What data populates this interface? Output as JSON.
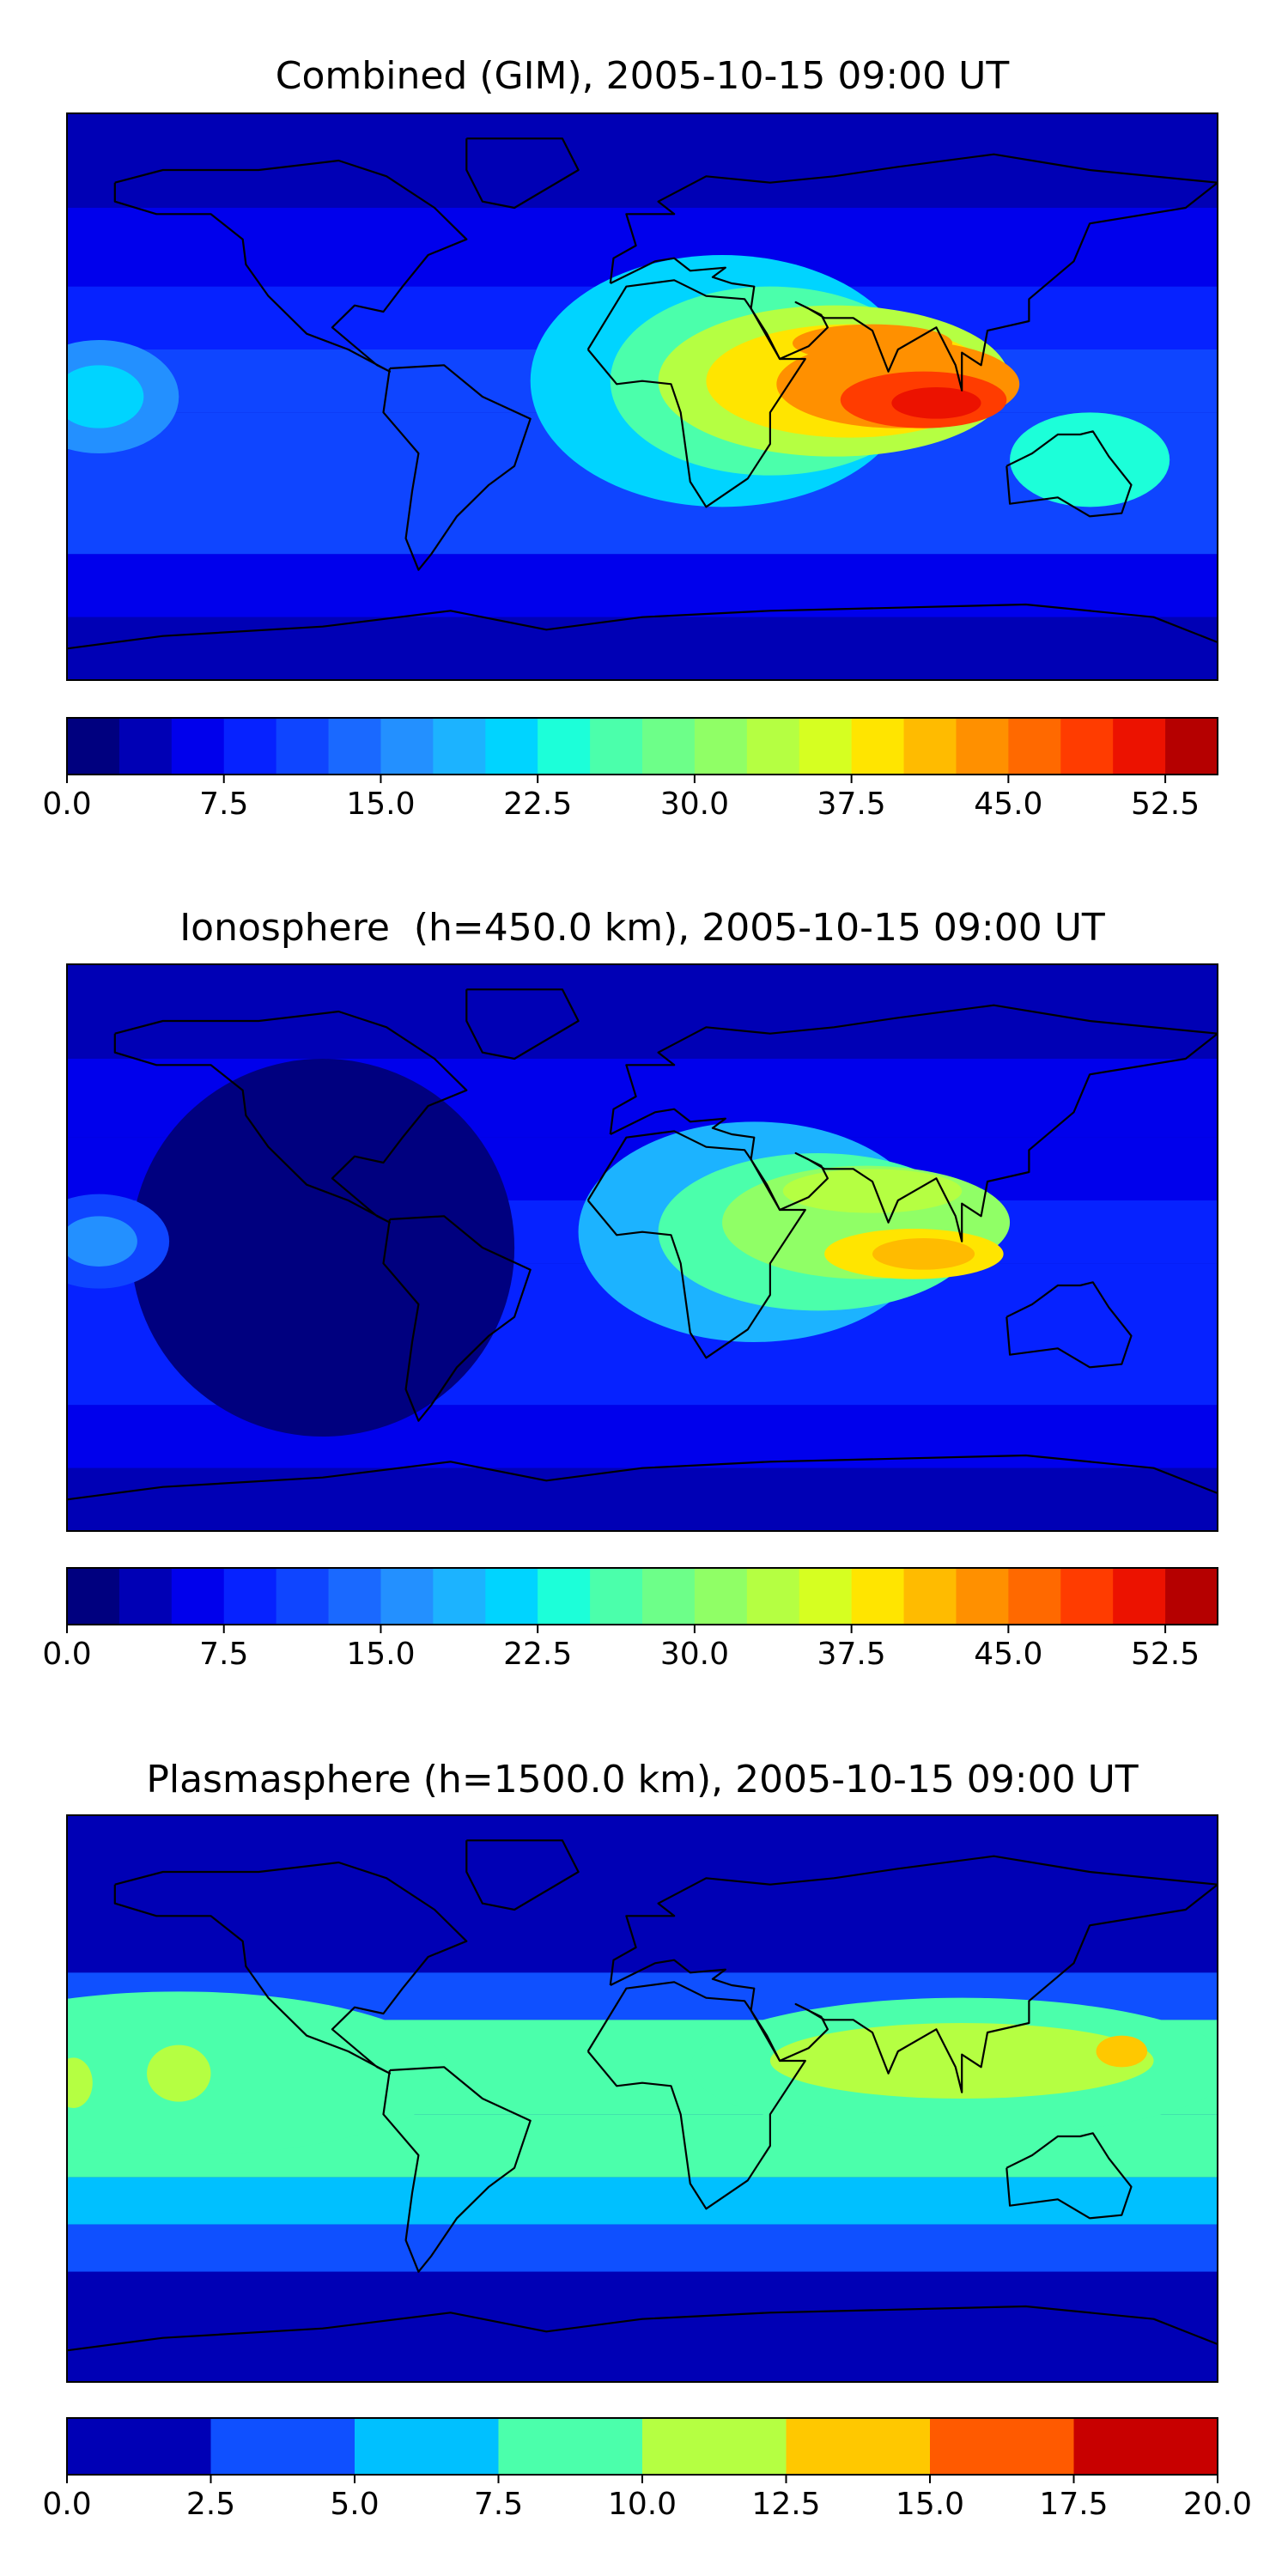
{
  "chart_data": [
    {
      "type": "heatmap",
      "subtype": "filled-contour-map",
      "title": "Combined (GIM), 2005-10-15 09:00 UT",
      "colormap": "jet",
      "colorbar": {
        "orientation": "horizontal",
        "levels": [
          0.0,
          2.5,
          5.0,
          7.5,
          10.0,
          12.5,
          15.0,
          17.5,
          20.0,
          22.5,
          25.0,
          27.5,
          30.0,
          32.5,
          35.0,
          37.5,
          40.0,
          42.5,
          45.0,
          47.5,
          50.0,
          52.5,
          55.0
        ],
        "tick_values": [
          0.0,
          7.5,
          15.0,
          22.5,
          30.0,
          37.5,
          45.0,
          52.5
        ],
        "tick_labels": [
          "0.0",
          "7.5",
          "15.0",
          "22.5",
          "30.0",
          "37.5",
          "45.0",
          "52.5"
        ],
        "colors": [
          "#00007f",
          "#0000b5",
          "#0000ec",
          "#0622ff",
          "#0f45ff",
          "#1a69ff",
          "#2390ff",
          "#1cb3ff",
          "#00d4ff",
          "#1cffd9",
          "#4bffab",
          "#6dff89",
          "#90ff66",
          "#b5ff42",
          "#d6ff21",
          "#ffe500",
          "#ffbb00",
          "#ff9000",
          "#ff6900",
          "#ff3c00",
          "#ec1200",
          "#b50000",
          "#7f0000"
        ]
      },
      "features": [
        {
          "lon": 90,
          "lat": -2,
          "value": 52.0
        },
        {
          "lon": 68,
          "lat": 12,
          "value": 44.0
        },
        {
          "lon": 30,
          "lat": 5,
          "value": 35.0
        },
        {
          "lon": -170,
          "lat": 0,
          "value": 22.0
        },
        {
          "lon": 140,
          "lat": -20,
          "value": 24.0
        }
      ]
    },
    {
      "type": "heatmap",
      "subtype": "filled-contour-map",
      "title": "Ionosphere  (h=450.0 km), 2005-10-15 09:00 UT",
      "colormap": "jet",
      "colorbar": {
        "orientation": "horizontal",
        "levels": [
          0.0,
          2.5,
          5.0,
          7.5,
          10.0,
          12.5,
          15.0,
          17.5,
          20.0,
          22.5,
          25.0,
          27.5,
          30.0,
          32.5,
          35.0,
          37.5,
          40.0,
          42.5,
          45.0,
          47.5,
          50.0,
          52.5,
          55.0
        ],
        "tick_values": [
          0.0,
          7.5,
          15.0,
          22.5,
          30.0,
          37.5,
          45.0,
          52.5
        ],
        "tick_labels": [
          "0.0",
          "7.5",
          "15.0",
          "22.5",
          "30.0",
          "37.5",
          "45.0",
          "52.5"
        ],
        "colors": [
          "#00007f",
          "#0000b5",
          "#0000ec",
          "#0622ff",
          "#0f45ff",
          "#1a69ff",
          "#2390ff",
          "#1cb3ff",
          "#00d4ff",
          "#1cffd9",
          "#4bffab",
          "#6dff89",
          "#90ff66",
          "#b5ff42",
          "#d6ff21",
          "#ffe500",
          "#ffbb00",
          "#ff9000",
          "#ff6900",
          "#ff3c00",
          "#ec1200",
          "#b50000",
          "#7f0000"
        ]
      },
      "features": [
        {
          "lon": 85,
          "lat": -2,
          "value": 42.0
        },
        {
          "lon": 70,
          "lat": 15,
          "value": 35.0
        },
        {
          "lon": -170,
          "lat": 0,
          "value": 17.0
        }
      ]
    },
    {
      "type": "heatmap",
      "subtype": "filled-contour-map",
      "title": "Plasmasphere (h=1500.0 km), 2005-10-15 09:00 UT",
      "colormap": "jet",
      "colorbar": {
        "orientation": "horizontal",
        "levels": [
          0.0,
          2.5,
          5.0,
          7.5,
          10.0,
          12.5,
          15.0,
          17.5,
          20.0
        ],
        "tick_values": [
          0.0,
          2.5,
          5.0,
          7.5,
          10.0,
          12.5,
          15.0,
          17.5,
          20.0
        ],
        "tick_labels": [
          "0.0",
          "2.5",
          "5.0",
          "7.5",
          "10.0",
          "12.5",
          "15.0",
          "17.5",
          "20.0"
        ],
        "colors": [
          "#0000b5",
          "#0f50ff",
          "#00c0ff",
          "#4bffab",
          "#b5ff42",
          "#ffc800",
          "#ff5a00",
          "#c80000"
        ]
      },
      "features": [
        {
          "lon": 150,
          "lat": 15,
          "value": 13.0
        },
        {
          "lon": 70,
          "lat": 10,
          "value": 11.0
        },
        {
          "lon": -145,
          "lat": 10,
          "value": 11.0
        },
        {
          "lon": -175,
          "lat": 5,
          "value": 10.0
        }
      ]
    }
  ]
}
